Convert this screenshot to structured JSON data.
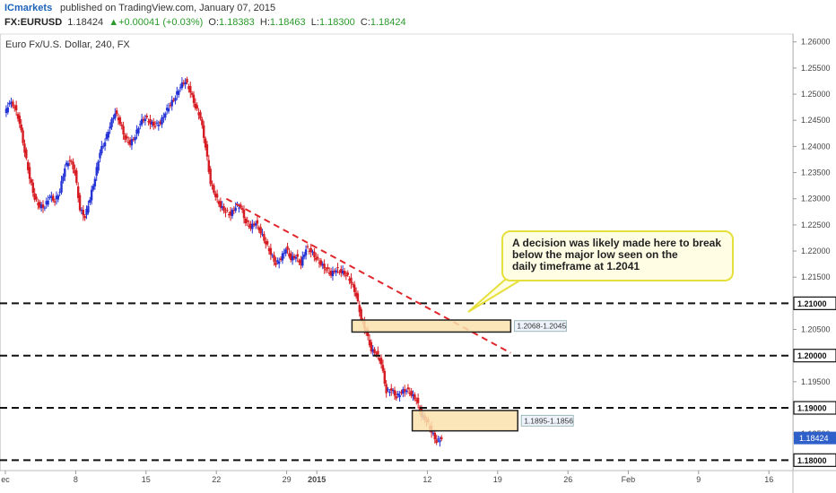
{
  "header": {
    "brand": "ICmarkets",
    "published": "published on TradingView.com, January 07, 2015",
    "symbol": "FX:EURUSD",
    "last": "1.18424",
    "change": "+0.00041 (+0.03%)",
    "open_label": "O:",
    "open": "1.18383",
    "high_label": "H:",
    "high": "1.18463",
    "low_label": "L:",
    "low": "1.18300",
    "close_label": "C:",
    "close": "1.18424",
    "up_color": "#2a9a2a"
  },
  "plot_title": "Euro Fx/U.S. Dollar, 240, FX",
  "annotation": {
    "line1": "A decision was likely made here to break",
    "line2": "below the major low seen on the",
    "line3": "daily timeframe at 1.2041"
  },
  "chart_data": {
    "type": "candlestick",
    "y_ticks": [
      "1.26000",
      "1.25500",
      "1.25000",
      "1.24500",
      "1.24000",
      "1.23500",
      "1.23000",
      "1.22500",
      "1.22000",
      "1.21500",
      "1.21000",
      "1.20500",
      "1.20000",
      "1.19500",
      "1.19000",
      "1.18500",
      "1.18000"
    ],
    "ylim": [
      1.178,
      1.2615
    ],
    "x_ticks": [
      {
        "label": "ec",
        "day": 1
      },
      {
        "label": "8",
        "day": 8
      },
      {
        "label": "15",
        "day": 15
      },
      {
        "label": "22",
        "day": 22
      },
      {
        "label": "29",
        "day": 29
      },
      {
        "label": "2015",
        "day": 32
      },
      {
        "label": "12",
        "day": 43
      },
      {
        "label": "19",
        "day": 50
      },
      {
        "label": "26",
        "day": 57
      },
      {
        "label": "Feb",
        "day": 63
      },
      {
        "label": "9",
        "day": 70
      },
      {
        "label": "16",
        "day": 77
      }
    ],
    "x_note": "day index: 1 = Dec 1, 2014; 32 = Jan 1, 2015",
    "close_path": [
      [
        0.0,
        1.246
      ],
      [
        0.5,
        1.2485
      ],
      [
        1.0,
        1.2475
      ],
      [
        1.5,
        1.2445
      ],
      [
        2.0,
        1.239
      ],
      [
        2.5,
        1.234
      ],
      [
        3.0,
        1.23
      ],
      [
        3.5,
        1.2285
      ],
      [
        4.0,
        1.2285
      ],
      [
        4.5,
        1.2305
      ],
      [
        5.0,
        1.2295
      ],
      [
        5.5,
        1.2315
      ],
      [
        6.0,
        1.236
      ],
      [
        6.5,
        1.2375
      ],
      [
        7.0,
        1.235
      ],
      [
        7.5,
        1.228
      ],
      [
        8.0,
        1.2265
      ],
      [
        8.5,
        1.23
      ],
      [
        9.0,
        1.234
      ],
      [
        9.5,
        1.239
      ],
      [
        10.0,
        1.241
      ],
      [
        10.5,
        1.244
      ],
      [
        11.0,
        1.2465
      ],
      [
        11.5,
        1.2445
      ],
      [
        12.0,
        1.2415
      ],
      [
        12.5,
        1.2405
      ],
      [
        13.0,
        1.242
      ],
      [
        13.5,
        1.2445
      ],
      [
        14.0,
        1.2455
      ],
      [
        14.5,
        1.2445
      ],
      [
        15.0,
        1.244
      ],
      [
        15.5,
        1.2445
      ],
      [
        16.0,
        1.2465
      ],
      [
        16.5,
        1.248
      ],
      [
        17.0,
        1.2495
      ],
      [
        17.5,
        1.2515
      ],
      [
        18.0,
        1.2525
      ],
      [
        18.5,
        1.2505
      ],
      [
        19.0,
        1.2475
      ],
      [
        19.5,
        1.2455
      ],
      [
        20.0,
        1.24
      ],
      [
        20.5,
        1.233
      ],
      [
        21.0,
        1.2305
      ],
      [
        21.5,
        1.2285
      ],
      [
        22.0,
        1.2275
      ],
      [
        22.5,
        1.227
      ],
      [
        23.0,
        1.2285
      ],
      [
        23.5,
        1.2285
      ],
      [
        24.0,
        1.2255
      ],
      [
        24.5,
        1.2245
      ],
      [
        25.0,
        1.2255
      ],
      [
        25.5,
        1.2235
      ],
      [
        26.0,
        1.2215
      ],
      [
        26.5,
        1.2195
      ],
      [
        27.0,
        1.2175
      ],
      [
        27.5,
        1.2185
      ],
      [
        28.0,
        1.2205
      ],
      [
        28.5,
        1.2185
      ],
      [
        29.0,
        1.219
      ],
      [
        29.5,
        1.2175
      ],
      [
        30.0,
        1.2205
      ],
      [
        30.5,
        1.22
      ],
      [
        31.0,
        1.2185
      ],
      [
        31.5,
        1.2175
      ],
      [
        32.0,
        1.2165
      ],
      [
        32.5,
        1.2155
      ],
      [
        33.0,
        1.2165
      ],
      [
        33.5,
        1.216
      ],
      [
        34.0,
        1.2155
      ],
      [
        34.5,
        1.214
      ],
      [
        35.0,
        1.2115
      ],
      [
        35.5,
        1.207
      ],
      [
        36.0,
        1.2045
      ],
      [
        36.5,
        1.201
      ],
      [
        37.0,
        1.2005
      ],
      [
        37.5,
        1.1985
      ],
      [
        38.0,
        1.193
      ],
      [
        38.5,
        1.1935
      ],
      [
        39.0,
        1.192
      ],
      [
        39.5,
        1.193
      ],
      [
        40.0,
        1.1935
      ],
      [
        40.5,
        1.1925
      ],
      [
        41.0,
        1.1915
      ],
      [
        41.5,
        1.1885
      ],
      [
        42.0,
        1.1875
      ],
      [
        42.5,
        1.1855
      ],
      [
        43.0,
        1.1835
      ],
      [
        43.5,
        1.1842
      ]
    ],
    "last_price": "1.18424",
    "levels": [
      {
        "label": "1.21000",
        "value": 1.21
      },
      {
        "label": "1.20000",
        "value": 1.2
      },
      {
        "label": "1.19000",
        "value": 1.19
      },
      {
        "label": "1.18000",
        "value": 1.18
      }
    ],
    "zones": [
      {
        "label": "1.2068-1.2045",
        "top": 1.2068,
        "bottom": 1.2045,
        "from_day": 35.5,
        "to_day": 51.3
      },
      {
        "label": "1.1895-1.1856",
        "top": 1.1895,
        "bottom": 1.1856,
        "from_day": 41.5,
        "to_day": 52.0
      }
    ],
    "trendline": {
      "from_day": 23,
      "from_value": 1.23,
      "to_day": 51.3,
      "to_value": 1.2005
    },
    "colors": {
      "up": "#2433d6",
      "down": "#d61c22",
      "level": "#111111",
      "trend": "#e0262a",
      "zone_fill": "#f9e2ac",
      "zone_stroke": "#222222",
      "axis_text": "#444444"
    }
  }
}
